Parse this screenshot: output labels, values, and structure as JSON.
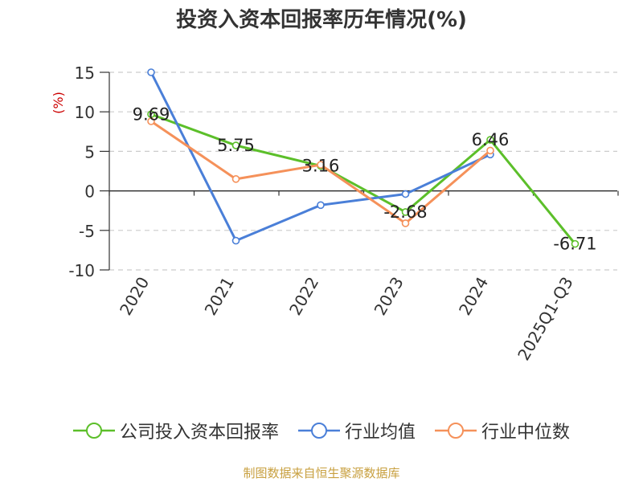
{
  "title": "投资入资本回报率历年情况(%)",
  "source_note": "制图数据来自恒生聚源数据库",
  "colors": {
    "title": "#333333",
    "axis": "#333333",
    "grid": "#cccccc",
    "unit": "#cc0000",
    "source": "#c8a040"
  },
  "chart_data": {
    "type": "line",
    "title": "投资入资本回报率历年情况(%)",
    "ylabel": "(%)",
    "xlabel": "",
    "ylim": [
      -10,
      15
    ],
    "yticks": [
      15,
      10,
      5,
      0,
      -5,
      -10
    ],
    "grid": true,
    "legend_position": "bottom",
    "categories": [
      "2020",
      "2021",
      "2022",
      "2023",
      "2024",
      "2025Q1-Q3"
    ],
    "series": [
      {
        "name": "公司投入资本回报率",
        "color": "#5cbf2a",
        "values": [
          9.69,
          5.75,
          3.16,
          -2.68,
          6.46,
          -6.71
        ],
        "labels": [
          "9.69",
          "5.75",
          "3.16",
          "-2.68",
          "6.46",
          "-6.71"
        ]
      },
      {
        "name": "行业均值",
        "color": "#4a7fd8",
        "values": [
          15.0,
          -6.3,
          -1.8,
          -0.4,
          4.6,
          null
        ]
      },
      {
        "name": "行业中位数",
        "color": "#f5915a",
        "values": [
          8.8,
          1.5,
          3.3,
          -4.1,
          5.1,
          null
        ]
      }
    ]
  }
}
